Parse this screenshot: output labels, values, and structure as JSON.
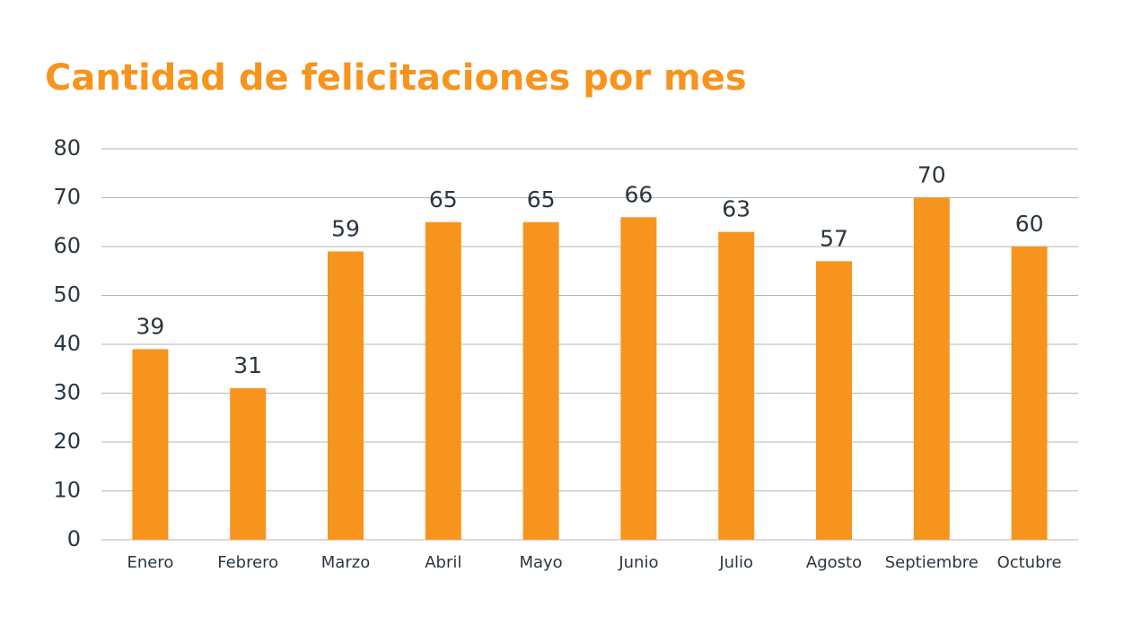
{
  "chart_data": {
    "type": "bar",
    "title": "Cantidad de felicitaciones por mes",
    "categories": [
      "Enero",
      "Febrero",
      "Marzo",
      "Abril",
      "Mayo",
      "Junio",
      "Julio",
      "Agosto",
      "Septiembre",
      "Octubre"
    ],
    "values": [
      39,
      31,
      59,
      65,
      65,
      66,
      63,
      57,
      70,
      60
    ],
    "color": "#f7941d",
    "ylim": [
      0,
      80
    ],
    "yticks": [
      0,
      10,
      20,
      30,
      40,
      50,
      60,
      70,
      80
    ],
    "grid": true
  }
}
